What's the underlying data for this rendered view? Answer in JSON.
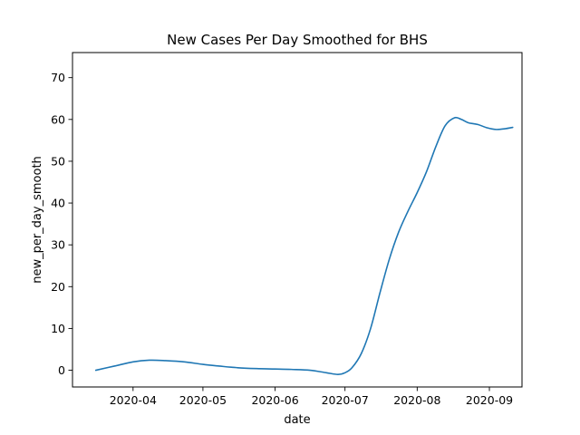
{
  "chart_data": {
    "type": "line",
    "title": "New Cases Per Day Smoothed for BHS",
    "xlabel": "date",
    "ylabel": "new_per_day_smooth",
    "xlim": [
      "2020-03-06",
      "2020-09-15"
    ],
    "ylim": [
      -4,
      76
    ],
    "x_ticks": [
      "2020-04-01",
      "2020-05-01",
      "2020-06-01",
      "2020-07-01",
      "2020-08-01",
      "2020-09-01"
    ],
    "x_tick_labels": [
      "2020-04",
      "2020-05",
      "2020-06",
      "2020-07",
      "2020-08",
      "2020-09"
    ],
    "y_ticks": [
      0,
      10,
      20,
      30,
      40,
      50,
      60,
      70
    ],
    "y_tick_labels": [
      "0",
      "10",
      "20",
      "30",
      "40",
      "50",
      "60",
      "70"
    ],
    "grid": false,
    "legend": "none",
    "series": [
      {
        "color": "#1f77b4",
        "x": [
          "2020-03-16",
          "2020-03-24",
          "2020-04-01",
          "2020-04-08",
          "2020-04-15",
          "2020-04-23",
          "2020-05-01",
          "2020-05-08",
          "2020-05-16",
          "2020-05-24",
          "2020-06-01",
          "2020-06-08",
          "2020-06-16",
          "2020-06-23",
          "2020-06-28",
          "2020-07-01",
          "2020-07-04",
          "2020-07-08",
          "2020-07-12",
          "2020-07-16",
          "2020-07-20",
          "2020-07-24",
          "2020-07-28",
          "2020-08-01",
          "2020-08-05",
          "2020-08-09",
          "2020-08-13",
          "2020-08-17",
          "2020-08-20",
          "2020-08-23",
          "2020-08-27",
          "2020-08-31",
          "2020-09-04",
          "2020-09-08",
          "2020-09-11"
        ],
        "y": [
          0.0,
          1.0,
          2.0,
          2.4,
          2.3,
          2.0,
          1.4,
          1.0,
          0.6,
          0.4,
          0.3,
          0.2,
          0.0,
          -0.6,
          -1.0,
          -0.6,
          0.6,
          4.0,
          10.0,
          18.5,
          26.5,
          33.0,
          38.0,
          42.5,
          47.5,
          53.5,
          58.5,
          60.4,
          60.0,
          59.2,
          58.8,
          58.0,
          57.6,
          57.8,
          58.1
        ]
      }
    ]
  }
}
